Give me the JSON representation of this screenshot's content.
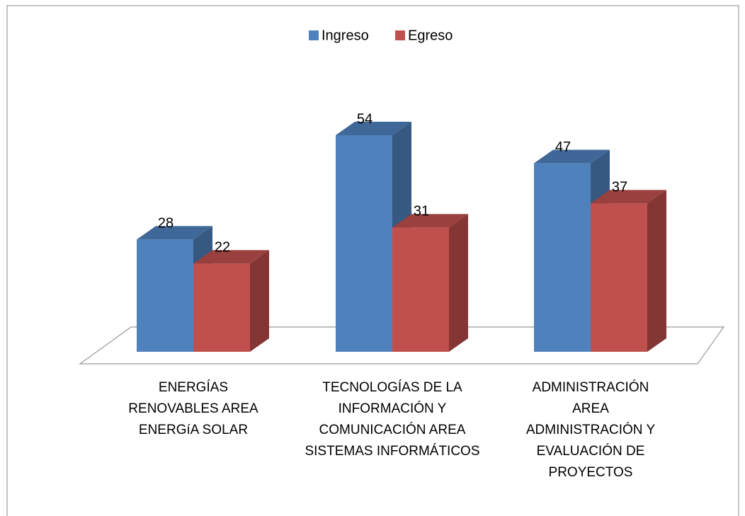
{
  "chart_data": {
    "type": "bar3d",
    "categories": [
      "ENERGÍAS RENOVABLES AREA ENERGíA SOLAR",
      "TECNOLOGÍAS DE LA INFORMACIÓN Y COMUNICACIÓN AREA SISTEMAS INFORMÁTICOS",
      "ADMINISTRACIÓN AREA ADMINISTRACIÓN Y EVALUACIÓN DE PROYECTOS"
    ],
    "series": [
      {
        "name": "Ingreso",
        "color": "#4f81bd",
        "values": [
          28,
          54,
          47
        ]
      },
      {
        "name": "Egreso",
        "color": "#c0504d",
        "values": [
          22,
          31,
          37
        ]
      }
    ],
    "legend": "top"
  }
}
